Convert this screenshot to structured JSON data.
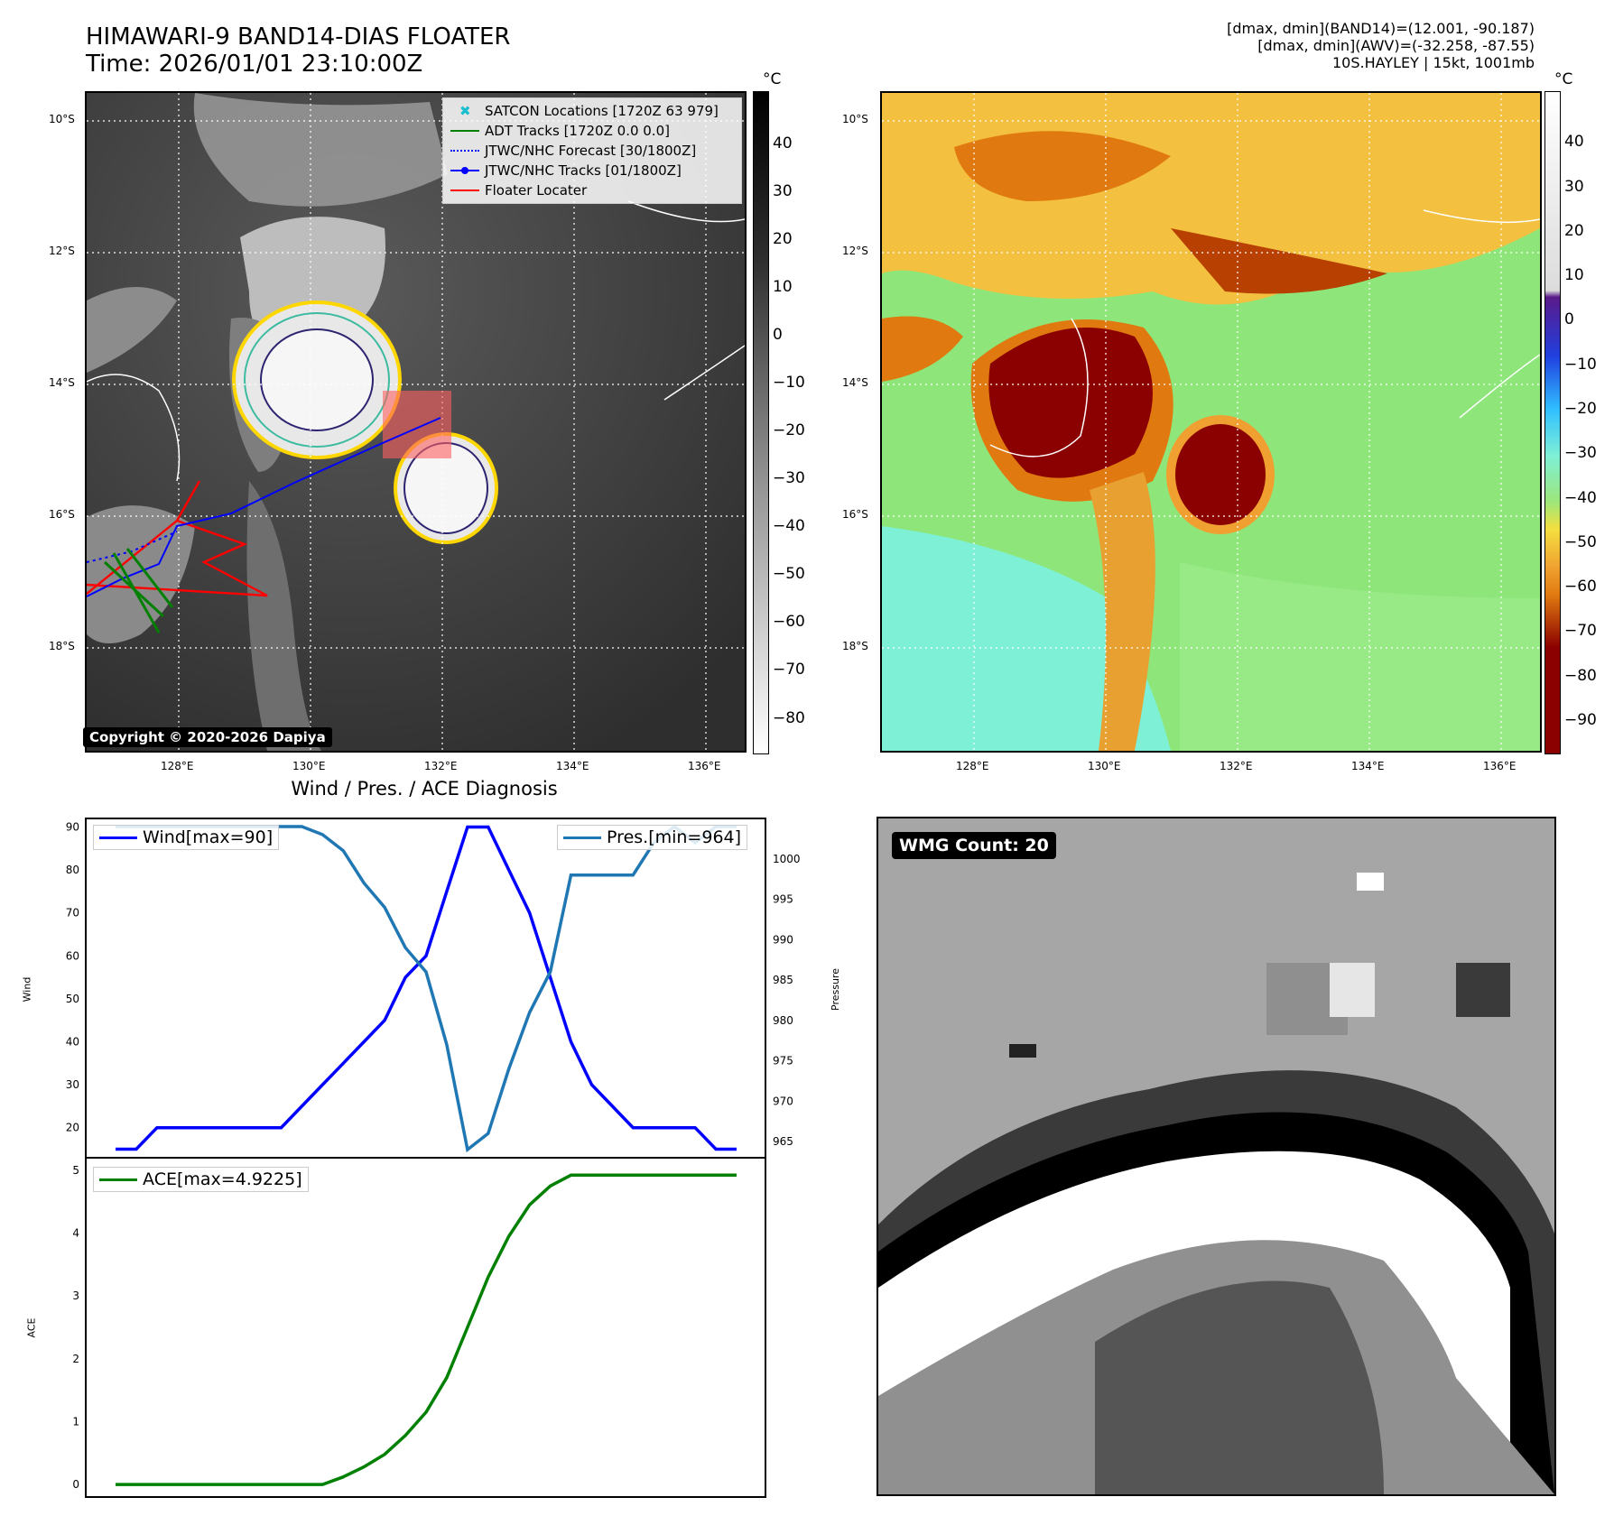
{
  "header": {
    "title_line1": "HIMAWARI-9 BAND14-DIAS FLOATER",
    "title_line2": "Time: 2026/01/01 23:10:00Z",
    "info_line1": "[dmax, dmin](BAND14)=(12.001, -90.187)",
    "info_line2": "[dmax, dmin](AWV)=(-32.258, -87.55)",
    "info_line3": "10S.HAYLEY | 15kt, 1001mb"
  },
  "map": {
    "lat_labels": [
      "10°S",
      "12°S",
      "14°S",
      "16°S",
      "18°S"
    ],
    "lon_labels": [
      "128°E",
      "130°E",
      "132°E",
      "134°E",
      "136°E"
    ],
    "copyright": "Copyright © 2020-2026 Dapiya"
  },
  "legend": {
    "items": [
      {
        "label": "SATCON Locations [1720Z 63 979]",
        "color": "#17becf",
        "style": "x"
      },
      {
        "label": "ADT Tracks [1720Z 0.0 0.0]",
        "color": "#008000",
        "style": "solid"
      },
      {
        "label": "JTWC/NHC Forecast [30/1800Z]",
        "color": "#0000ff",
        "style": "dotted"
      },
      {
        "label": "JTWC/NHC Tracks [01/1800Z]",
        "color": "#0000ff",
        "style": "dot-line"
      },
      {
        "label": "Floater Locater",
        "color": "#ff0000",
        "style": "solid"
      }
    ]
  },
  "colorbar_gray": {
    "unit": "°C",
    "ticks": [
      "40",
      "30",
      "20",
      "10",
      "0",
      "−10",
      "−20",
      "−30",
      "−40",
      "−50",
      "−60",
      "−70",
      "−80"
    ]
  },
  "colorbar_color": {
    "unit": "°C",
    "ticks": [
      "40",
      "30",
      "20",
      "10",
      "0",
      "−10",
      "−20",
      "−30",
      "−40",
      "−50",
      "−60",
      "−70",
      "−80",
      "−90"
    ]
  },
  "timeseries": {
    "title": "Wind / Pres. / ACE Diagnosis",
    "wind_ylabel": "Wind",
    "pres_ylabel": "Pressure",
    "ace_ylabel": "ACE",
    "wind_legend": "Wind[max=90]",
    "pres_legend": "Pres.[min=964]",
    "ace_legend": "ACE[max=4.9225]",
    "wind_ticks": [
      "90",
      "80",
      "70",
      "60",
      "50",
      "40",
      "30",
      "20"
    ],
    "pres_ticks": [
      "1000",
      "995",
      "990",
      "985",
      "980",
      "975",
      "970",
      "965"
    ],
    "ace_ticks": [
      "5",
      "4",
      "3",
      "2",
      "1",
      "0"
    ]
  },
  "wmg": {
    "badge": "WMG Count: 20"
  },
  "chart_data": [
    {
      "type": "line",
      "name": "Wind",
      "series": [
        {
          "name": "Wind[max=90]",
          "color": "#0000ff",
          "values": [
            15,
            15,
            20,
            20,
            20,
            20,
            20,
            20,
            20,
            25,
            30,
            35,
            40,
            45,
            55,
            60,
            75,
            90,
            90,
            80,
            70,
            55,
            40,
            30,
            25,
            20,
            20,
            20,
            20,
            15,
            15
          ]
        }
      ],
      "ylim": [
        13,
        92
      ]
    },
    {
      "type": "line",
      "name": "Pressure",
      "series": [
        {
          "name": "Pres.[min=964]",
          "color": "#1f77b4",
          "values": [
            1004,
            1004,
            1004,
            1004,
            1004,
            1004,
            1004,
            1004,
            1004,
            1004,
            1003,
            1001,
            997,
            994,
            989,
            986,
            977,
            964,
            966,
            974,
            981,
            986,
            998,
            998,
            998,
            998,
            1002,
            1004,
            1002,
            1004,
            1004
          ]
        }
      ],
      "ylim": [
        963,
        1005
      ]
    },
    {
      "type": "line",
      "name": "ACE",
      "series": [
        {
          "name": "ACE[max=4.9225]",
          "color": "#008000",
          "values": [
            0,
            0,
            0,
            0,
            0,
            0,
            0,
            0,
            0,
            0,
            0,
            0.12,
            0.28,
            0.48,
            0.78,
            1.15,
            1.7,
            2.5,
            3.3,
            3.95,
            4.45,
            4.75,
            4.9225,
            4.9225,
            4.9225,
            4.9225,
            4.9225,
            4.9225,
            4.9225,
            4.9225,
            4.9225
          ]
        }
      ],
      "ylim": [
        -0.2,
        5.2
      ]
    }
  ]
}
